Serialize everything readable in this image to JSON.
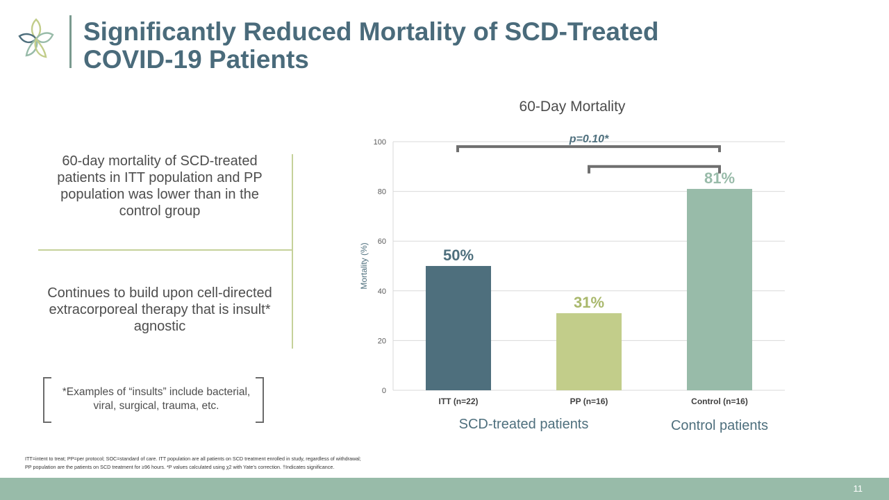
{
  "slide": {
    "title_line1": "Significantly Reduced Mortality of SCD-Treated",
    "title_line2": "COVID-19 Patients",
    "point1": "60-day mortality of SCD-treated patients in ITT population and PP population was lower than in the control group",
    "point2": "Continues to build upon cell-directed extracorporeal therapy that is insult* agnostic",
    "insults_note": "*Examples of “insults” include bacterial, viral, surgical, trauma, etc.",
    "footnote_line1": "ITT=intent to treat; PP=per protocol; SOC=standard of care.  ITT population are all patients on SCD treatment enrolled in study, regardless of withdrawal;",
    "footnote_line2": "PP population are the patients on SCD treatment for ≥96 hours.  *P values calculated using χ2 with Yate’s correction. †Indicates significance.",
    "page_number": "11"
  },
  "colors": {
    "title": "#4a6b7b",
    "itt": "#4e6f7d",
    "pp": "#c2cd8a",
    "control": "#98bba9",
    "footer": "#98bba9"
  },
  "chart_data": {
    "type": "bar",
    "title": "60-Day Mortality",
    "categories": [
      "ITT (n=22)",
      "PP (n=16)",
      "Control (n=16)"
    ],
    "values": [
      50,
      31,
      81
    ],
    "data_labels": [
      "50%",
      "31%",
      "81%"
    ],
    "bar_colors": [
      "#4e6f7d",
      "#c2cd8a",
      "#98bba9"
    ],
    "label_colors": [
      "#4e6f7d",
      "#a9b86c",
      "#98bba9"
    ],
    "ylabel": "Mortality (%)",
    "xlabel": "",
    "ylim": [
      0,
      100
    ],
    "yticks": [
      0,
      20,
      40,
      60,
      80,
      100
    ],
    "grid": true,
    "annotation": "p=0.10*",
    "group_labels": [
      "SCD-treated patients",
      "Control patients"
    ]
  }
}
